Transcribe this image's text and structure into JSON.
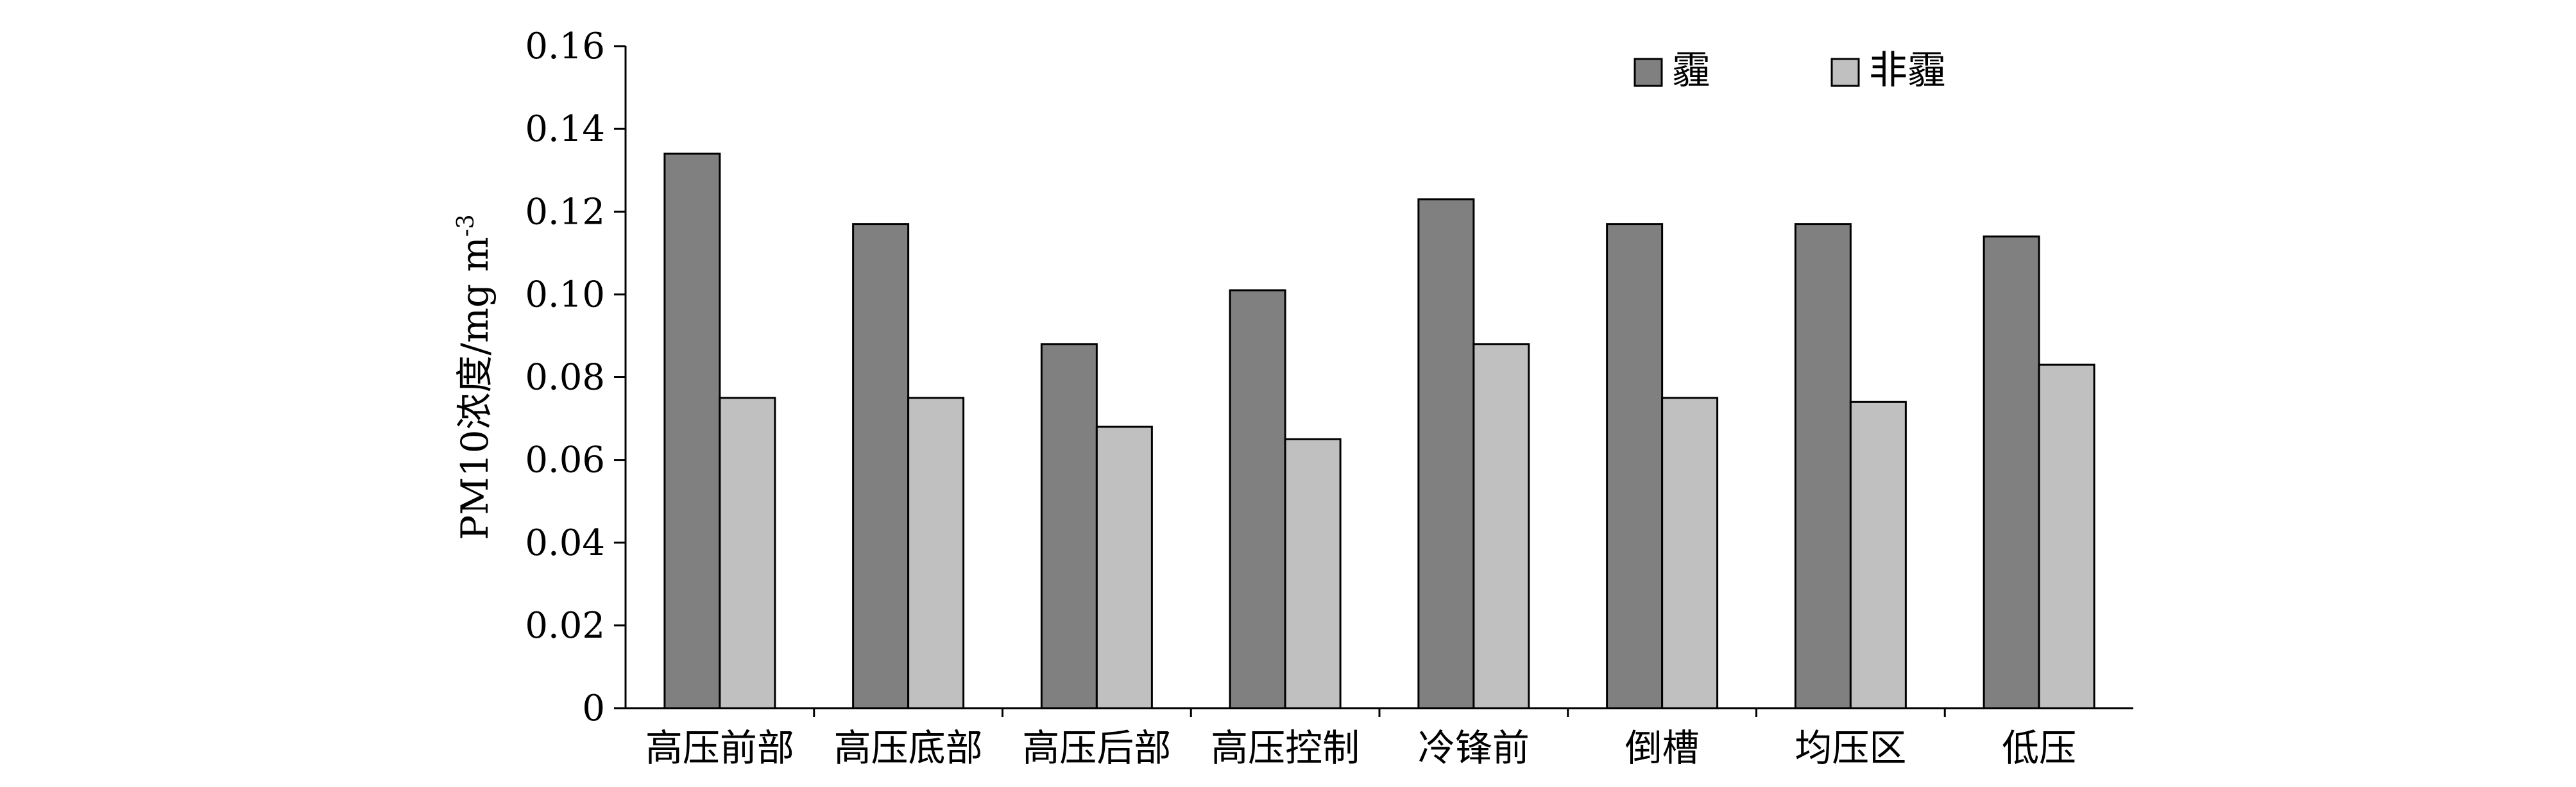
{
  "chart_data": {
    "type": "bar",
    "categories": [
      "高压前部",
      "高压底部",
      "高压后部",
      "高压控制",
      "冷锋前",
      "倒槽",
      "均压区",
      "低压"
    ],
    "series": [
      {
        "name": "霾",
        "values": [
          0.134,
          0.117,
          0.088,
          0.101,
          0.123,
          0.117,
          0.117,
          0.114
        ],
        "color": "#808080"
      },
      {
        "name": "非霾",
        "values": [
          0.075,
          0.075,
          0.068,
          0.065,
          0.088,
          0.075,
          0.074,
          0.083
        ],
        "color": "#c0c0c0"
      }
    ],
    "ylabel_main": "PM10浓度/mg m",
    "ylabel_sup": "-3",
    "ylim": [
      0,
      0.16
    ],
    "yticks": [
      0,
      0.02,
      0.04,
      0.06,
      0.08,
      0.1,
      0.12,
      0.14,
      0.16
    ],
    "ytick_labels": [
      "0",
      "0.02",
      "0.04",
      "0.06",
      "0.08",
      "0.10",
      "0.12",
      "0.14",
      "0.16"
    ],
    "grid": false,
    "legend_position": "top-right"
  }
}
